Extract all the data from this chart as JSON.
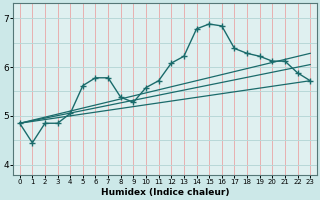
{
  "xlabel": "Humidex (Indice chaleur)",
  "bg_color": "#cce8e8",
  "plot_bg_color": "#dff0f0",
  "line_color": "#1a6b6b",
  "grid_color_v": "#e8b0b0",
  "grid_color_h": "#b8d8d8",
  "xlim": [
    -0.5,
    23.5
  ],
  "ylim": [
    3.8,
    7.3
  ],
  "yticks": [
    4,
    5,
    6,
    7
  ],
  "xticks": [
    0,
    1,
    2,
    3,
    4,
    5,
    6,
    7,
    8,
    9,
    10,
    11,
    12,
    13,
    14,
    15,
    16,
    17,
    18,
    19,
    20,
    21,
    22,
    23
  ],
  "curve": {
    "x": [
      0,
      1,
      2,
      3,
      4,
      5,
      6,
      7,
      8,
      9,
      10,
      11,
      12,
      13,
      14,
      15,
      16,
      17,
      18,
      19,
      20,
      21,
      22,
      23
    ],
    "y": [
      4.85,
      4.45,
      4.85,
      4.85,
      5.05,
      5.62,
      5.78,
      5.78,
      5.38,
      5.28,
      5.58,
      5.72,
      6.08,
      6.22,
      6.78,
      6.88,
      6.84,
      6.38,
      6.28,
      6.22,
      6.12,
      6.12,
      5.88,
      5.72
    ]
  },
  "straight1": {
    "x": [
      0,
      23
    ],
    "y": [
      4.85,
      5.72
    ]
  },
  "straight2": {
    "x": [
      0,
      23
    ],
    "y": [
      4.85,
      6.05
    ]
  },
  "straight3": {
    "x": [
      0,
      23
    ],
    "y": [
      4.85,
      6.28
    ]
  }
}
